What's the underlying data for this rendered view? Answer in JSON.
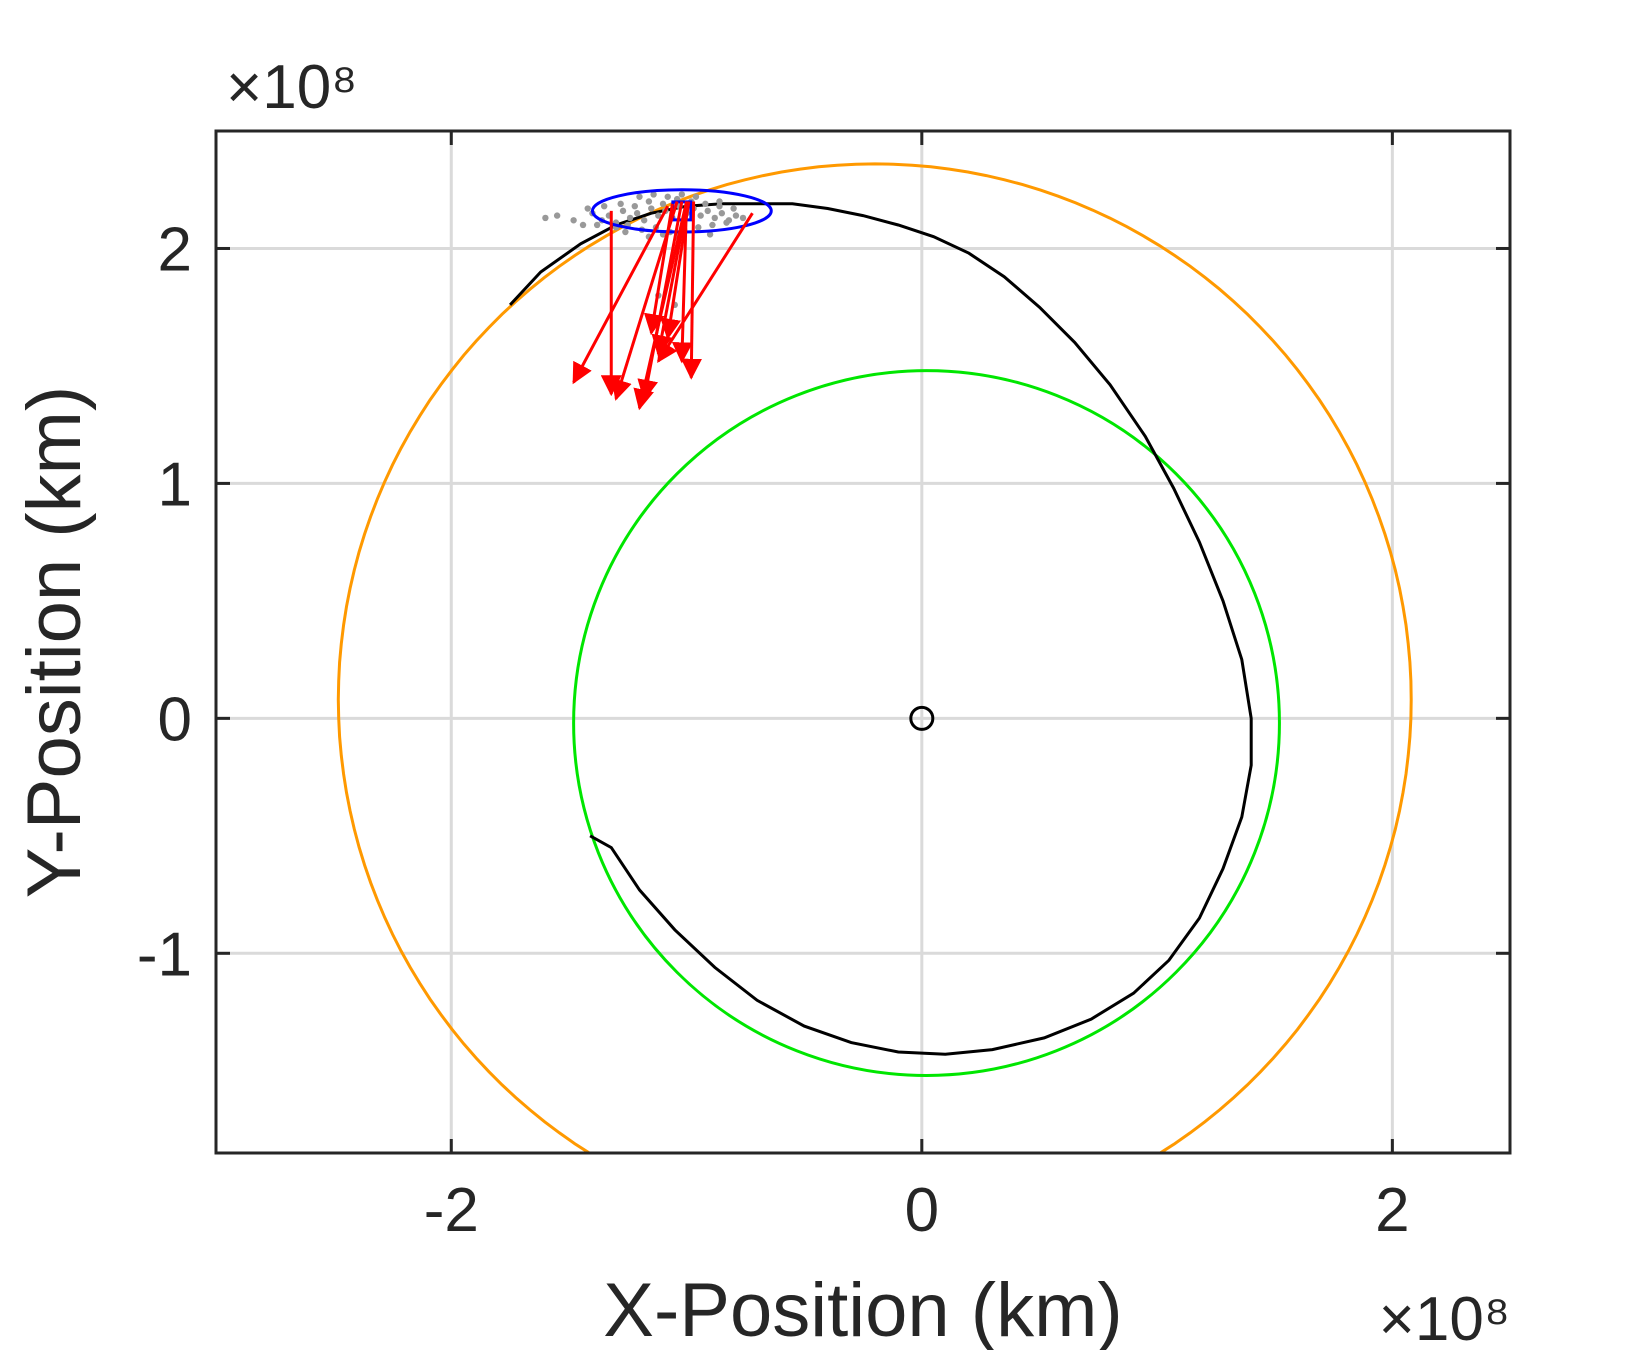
{
  "chart_data": {
    "type": "line",
    "title": "",
    "xlabel": "X-Position (km)",
    "ylabel": "Y-Position (km)",
    "x_exponent_label": "×10⁸",
    "y_exponent_label": "×10⁸",
    "xlim": [
      -3.0,
      2.5
    ],
    "ylim": [
      -1.85,
      2.5
    ],
    "x_ticks": [
      -2,
      0,
      2
    ],
    "y_ticks": [
      -1,
      0,
      1,
      2
    ],
    "x_tick_labels": [
      "-2",
      "0",
      "2"
    ],
    "y_tick_labels": [
      "-1",
      "0",
      "1",
      "2"
    ],
    "grid": true,
    "colors": {
      "outer_orbit": "#ff9900",
      "inner_orbit": "#00e600",
      "transfer": "#000000",
      "ellipse": "#0000ff",
      "arrows": "#ff0000",
      "cloud": "#999999",
      "axes": "#262626",
      "grid": "#dadada"
    },
    "outer_orbit": {
      "center": [
        -0.2,
        0.08
      ],
      "radius": 2.28,
      "gap_deg": [
        238,
        302
      ]
    },
    "inner_orbit": {
      "center": [
        0.02,
        -0.02
      ],
      "radius": 1.5
    },
    "central_body": {
      "x": 0.0,
      "y": 0.0
    },
    "transfer_path": {
      "x": [
        -1.75,
        -1.62,
        -1.45,
        -1.3,
        -1.15,
        -1.0,
        -0.85,
        -0.7,
        -0.55,
        -0.4,
        -0.25,
        -0.1,
        0.05,
        0.2,
        0.35,
        0.5,
        0.65,
        0.8,
        0.95,
        1.07,
        1.18,
        1.28,
        1.36,
        1.4,
        1.4,
        1.36,
        1.28,
        1.18,
        1.05,
        0.9,
        0.72,
        0.52,
        0.3,
        0.1,
        -0.1,
        -0.3,
        -0.5,
        -0.7,
        -0.88,
        -1.05,
        -1.2,
        -1.32,
        -1.41
      ],
      "y": [
        1.76,
        1.9,
        2.02,
        2.1,
        2.15,
        2.18,
        2.19,
        2.19,
        2.19,
        2.17,
        2.14,
        2.1,
        2.05,
        1.98,
        1.88,
        1.75,
        1.6,
        1.42,
        1.2,
        0.98,
        0.75,
        0.5,
        0.25,
        0.0,
        -0.2,
        -0.42,
        -0.64,
        -0.85,
        -1.03,
        -1.17,
        -1.28,
        -1.36,
        -1.41,
        -1.43,
        -1.42,
        -1.38,
        -1.31,
        -1.2,
        -1.06,
        -0.9,
        -0.73,
        -0.55,
        -0.5
      ]
    },
    "uncertainty_ellipse": {
      "center": [
        -1.02,
        2.16
      ],
      "rx": 0.38,
      "ry": 0.09
    },
    "marker_square": {
      "x": -1.02,
      "y": 2.16
    },
    "arrows": [
      {
        "from": [
          -1.32,
          2.16
        ],
        "to": [
          -1.32,
          1.38
        ]
      },
      {
        "from": [
          -1.08,
          2.18
        ],
        "to": [
          -1.48,
          1.43
        ]
      },
      {
        "from": [
          -1.04,
          2.2
        ],
        "to": [
          -1.3,
          1.36
        ]
      },
      {
        "from": [
          -1.02,
          2.2
        ],
        "to": [
          -1.18,
          1.36
        ]
      },
      {
        "from": [
          -1.0,
          2.2
        ],
        "to": [
          -1.2,
          1.32
        ]
      },
      {
        "from": [
          -1.0,
          2.18
        ],
        "to": [
          -1.12,
          1.55
        ]
      },
      {
        "from": [
          -0.99,
          2.2
        ],
        "to": [
          -1.08,
          1.62
        ]
      },
      {
        "from": [
          -1.0,
          2.2
        ],
        "to": [
          -1.02,
          1.52
        ]
      },
      {
        "from": [
          -0.97,
          2.2
        ],
        "to": [
          -0.98,
          1.45
        ]
      },
      {
        "from": [
          -0.72,
          2.15
        ],
        "to": [
          -1.12,
          1.52
        ]
      },
      {
        "from": [
          -1.06,
          2.19
        ],
        "to": [
          -1.15,
          1.64
        ]
      }
    ],
    "cloud_points": {
      "x": [
        -1.6,
        -1.55,
        -1.48,
        -1.44,
        -1.4,
        -1.36,
        -1.33,
        -1.3,
        -1.27,
        -1.24,
        -1.21,
        -1.18,
        -1.15,
        -1.12,
        -1.09,
        -1.06,
        -1.03,
        -1.0,
        -0.97,
        -0.94,
        -0.91,
        -0.88,
        -0.85,
        -0.82,
        -0.79,
        -0.76,
        -1.42,
        -1.35,
        -1.28,
        -1.22,
        -1.16,
        -1.1,
        -1.04,
        -0.98,
        -0.92,
        -0.86,
        -0.8,
        -1.38,
        -1.3,
        -1.25,
        -1.19,
        -1.13,
        -1.07,
        -1.01,
        -0.95,
        -0.89,
        -0.83,
        -1.2,
        -1.14,
        -1.08,
        -1.02,
        -0.96,
        -1.1,
        -1.04,
        -0.9,
        -1.26,
        -1.16,
        -0.86,
        -1.05,
        -1.12
      ],
      "y": [
        2.13,
        2.14,
        2.12,
        2.1,
        2.15,
        2.12,
        2.14,
        2.11,
        2.16,
        2.13,
        2.15,
        2.12,
        2.17,
        2.14,
        2.16,
        2.13,
        2.18,
        2.15,
        2.17,
        2.14,
        2.16,
        2.13,
        2.15,
        2.12,
        2.14,
        2.13,
        2.17,
        2.18,
        2.19,
        2.18,
        2.2,
        2.19,
        2.21,
        2.2,
        2.19,
        2.18,
        2.17,
        2.1,
        2.09,
        2.1,
        2.08,
        2.09,
        2.07,
        2.08,
        2.09,
        2.1,
        2.11,
        2.22,
        2.23,
        2.22,
        2.23,
        2.22,
        2.06,
        2.05,
        2.06,
        2.07,
        2.05,
        2.2,
        1.76,
        1.8
      ]
    }
  }
}
